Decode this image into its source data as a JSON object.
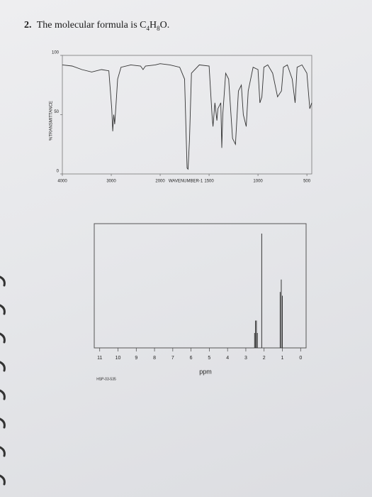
{
  "question": {
    "label": "2.",
    "text": "The molecular formula is",
    "formula": [
      "C",
      "4",
      "H",
      "8",
      "O."
    ]
  },
  "chart_data": [
    {
      "type": "line",
      "xlabel": "WAVENUMBER-1",
      "ylabel": "%TRANSMITTANCE",
      "color": "#333333",
      "x": [
        4000,
        3800,
        3600,
        3400,
        3200,
        3050,
        2990,
        2970,
        2950,
        2930,
        2900,
        2870,
        2800,
        2600,
        2400,
        2350,
        2300,
        2100,
        2000,
        1900,
        1800,
        1750,
        1725,
        1715,
        1700,
        1680,
        1600,
        1500,
        1470,
        1460,
        1440,
        1420,
        1410,
        1380,
        1370,
        1360,
        1330,
        1300,
        1260,
        1230,
        1200,
        1170,
        1150,
        1120,
        1100,
        1050,
        1000,
        980,
        960,
        940,
        900,
        850,
        800,
        760,
        740,
        700,
        650,
        620,
        600,
        550,
        500,
        470,
        450
      ],
      "values": [
        92,
        91,
        88,
        86,
        88,
        87,
        55,
        36,
        50,
        42,
        60,
        80,
        90,
        92,
        91,
        88,
        91,
        92,
        93,
        92,
        90,
        80,
        5,
        4,
        30,
        85,
        92,
        91,
        50,
        40,
        60,
        45,
        55,
        60,
        22,
        50,
        85,
        80,
        30,
        25,
        70,
        75,
        50,
        40,
        70,
        90,
        88,
        60,
        65,
        90,
        92,
        85,
        65,
        70,
        90,
        92,
        80,
        60,
        90,
        92,
        85,
        55,
        60
      ],
      "xlim": [
        4000,
        450
      ],
      "xticks": [
        4000,
        3000,
        2000,
        1500,
        1000,
        500
      ],
      "ylim": [
        0,
        100
      ],
      "yticks": [
        0,
        50,
        100
      ]
    },
    {
      "type": "stem",
      "xlabel": "ppm",
      "note": "HSP-03-535",
      "color": "#333333",
      "x": [
        2.52,
        2.47,
        2.42,
        2.37,
        2.13,
        1.12,
        1.06,
        1.0
      ],
      "values": [
        12,
        22,
        22,
        12,
        92,
        45,
        55,
        42
      ],
      "xlim": [
        11.3,
        -0.3
      ],
      "xticks": [
        11,
        10,
        9,
        8,
        7,
        6,
        5,
        4,
        3,
        2,
        1,
        0
      ],
      "ylim": [
        0,
        100
      ]
    }
  ]
}
